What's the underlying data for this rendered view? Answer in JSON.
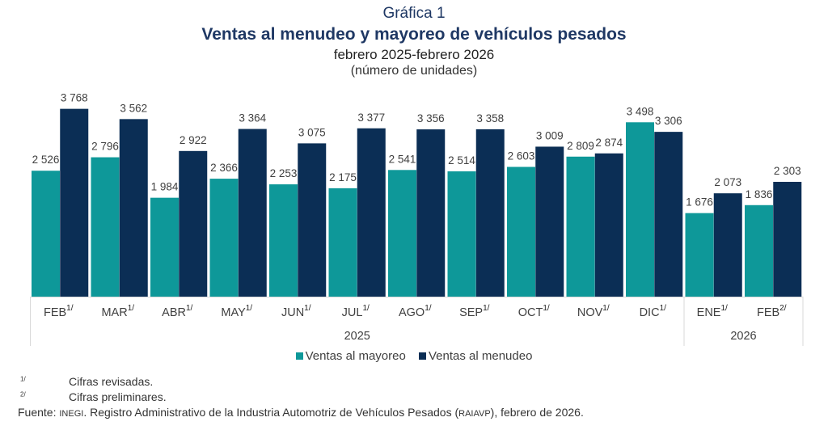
{
  "header": {
    "label": "Gráfica 1",
    "title": "Ventas al menudeo y mayoreo de vehículos pesados",
    "subtitle": "febrero 2025-febrero 2026",
    "units": "(número de unidades)"
  },
  "chart_data": {
    "type": "bar",
    "categories": [
      "FEB",
      "MAR",
      "ABR",
      "MAY",
      "JUN",
      "JUL",
      "AGO",
      "SEP",
      "OCT",
      "NOV",
      "DIC",
      "ENE",
      "FEB"
    ],
    "category_notes": [
      "1/",
      "1/",
      "1/",
      "1/",
      "1/",
      "1/",
      "1/",
      "1/",
      "1/",
      "1/",
      "1/",
      "1/",
      "2/"
    ],
    "year_groups": [
      {
        "label": "2025",
        "count": 11
      },
      {
        "label": "2026",
        "count": 2
      }
    ],
    "series": [
      {
        "name": "Ventas al mayoreo",
        "color": "#0e9899",
        "values": [
          2526,
          2796,
          1984,
          2366,
          2253,
          2175,
          2541,
          2514,
          2603,
          2809,
          3498,
          1676,
          1836
        ],
        "labels": [
          "2 526",
          "2 796",
          "1 984",
          "2 366",
          "2 253",
          "2 175",
          "2 541",
          "2 514",
          "2 603",
          "2 809",
          "3 498",
          "1 676",
          "1 836"
        ]
      },
      {
        "name": "Ventas al menudeo",
        "color": "#0b2e55",
        "values": [
          3768,
          3562,
          2922,
          3364,
          3075,
          3377,
          3356,
          3358,
          3009,
          2874,
          3306,
          2073,
          2303
        ],
        "labels": [
          "3 768",
          "3 562",
          "2 922",
          "3 364",
          "3 075",
          "3 377",
          "3 356",
          "3 358",
          "3 009",
          "2 874",
          "3 306",
          "2 073",
          "2 303"
        ]
      }
    ],
    "ylim": [
      0,
      4200
    ],
    "grid": false,
    "legend_position": "bottom"
  },
  "legend": {
    "items": [
      "Ventas al mayoreo",
      "Ventas al menudeo"
    ]
  },
  "notes": {
    "n1_mark": "1/",
    "n1_text": "Cifras revisadas.",
    "n2_mark": "2/",
    "n2_text": "Cifras preliminares.",
    "source_label": "Fuente:",
    "source_org": "INEGI",
    "source_text": ". Registro Administrativo de la Industria Automotriz de Vehículos Pesados (",
    "source_abbr": "RAIAVP",
    "source_end": "), febrero de 2026."
  }
}
